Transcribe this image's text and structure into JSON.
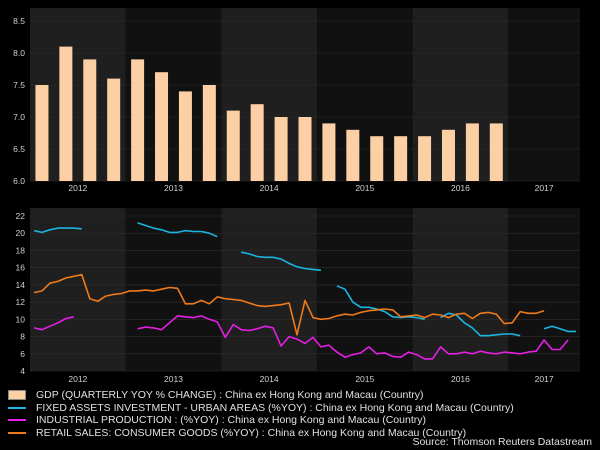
{
  "chart_data": [
    {
      "type": "bar",
      "title": "GDP (QUARTERLY YOY % CHANGE) : China ex Hong Kong and Macau (Country)",
      "series": [
        {
          "name": "GDP (QUARTERLY YOY % CHANGE) : China ex Hong Kong and Macau (Country)",
          "color": "#fcd0a4",
          "values": [
            7.5,
            8.1,
            7.9,
            7.6,
            7.9,
            7.7,
            7.4,
            7.5,
            7.1,
            7.2,
            7.0,
            7.0,
            6.9,
            6.8,
            6.7,
            6.7,
            6.7,
            6.8,
            6.9,
            6.9
          ]
        }
      ],
      "ylim": [
        6.0,
        8.5
      ],
      "yticks": [
        "6.0",
        "6.5",
        "7.0",
        "7.5",
        "8.0",
        "8.5"
      ],
      "year_labels": [
        "2012",
        "2013",
        "2014",
        "2015",
        "2016",
        "2017"
      ]
    },
    {
      "type": "line",
      "ylim": [
        4,
        22
      ],
      "yticks": [
        "4",
        "6",
        "8",
        "10",
        "12",
        "14",
        "16",
        "18",
        "20",
        "22"
      ],
      "year_labels": [
        "2012",
        "2013",
        "2014",
        "2015",
        "2016",
        "2017"
      ],
      "x_start": "2012-01",
      "series": [
        {
          "name": "FIXED ASSETS INVESTMENT - URBAN AREAS (%YOY) : China ex Hong Kong and Macau (Country)",
          "color": "#1ab6e3",
          "values": [
            20.3,
            20.1,
            20.4,
            20.6,
            20.6,
            20.6,
            20.5,
            null,
            null,
            null,
            null,
            null,
            null,
            21.2,
            20.9,
            20.6,
            20.4,
            20.1,
            20.1,
            20.3,
            20.2,
            20.2,
            20.0,
            19.6,
            null,
            null,
            17.8,
            17.6,
            17.3,
            17.2,
            17.2,
            17.0,
            16.5,
            16.1,
            15.9,
            15.8,
            15.7,
            null,
            13.9,
            13.5,
            12.0,
            11.4,
            11.4,
            11.2,
            10.9,
            10.3,
            10.2,
            10.3,
            10.2,
            10.0,
            null,
            10.2,
            10.7,
            10.5,
            9.6,
            9.0,
            8.1,
            8.1,
            8.2,
            8.3,
            8.3,
            8.1,
            null,
            null,
            8.9,
            9.2,
            8.9,
            8.6,
            8.6
          ]
        },
        {
          "name": "INDUSTRIAL PRODUCTION : (%YOY) : China ex Hong Kong and Macau (Country)",
          "color": "#e61ee6",
          "values": [
            9.0,
            8.8,
            9.2,
            9.6,
            10.1,
            10.3,
            null,
            null,
            null,
            null,
            null,
            null,
            null,
            8.9,
            9.1,
            9.0,
            8.8,
            9.6,
            10.4,
            10.3,
            10.2,
            10.4,
            10.0,
            9.7,
            7.9,
            9.4,
            8.8,
            8.7,
            8.9,
            9.2,
            9.0,
            6.9,
            8.0,
            7.7,
            7.2,
            7.9,
            6.8,
            7.0,
            6.2,
            5.6,
            5.9,
            6.1,
            6.8,
            6.0,
            6.1,
            5.7,
            5.6,
            6.2,
            5.9,
            5.4,
            5.4,
            6.8,
            6.0,
            6.0,
            6.2,
            6.0,
            6.3,
            6.1,
            6.0,
            6.2,
            6.1,
            6.0,
            6.2,
            6.3,
            7.6,
            6.5,
            6.5,
            7.6
          ]
        },
        {
          "name": "RETAIL SALES: CONSUMER GOODS (%YOY) : China ex Hong Kong and Macau (Country)",
          "color": "#f07a1a",
          "values": [
            13.1,
            13.3,
            14.2,
            14.4,
            14.8,
            15.0,
            15.2,
            12.4,
            12.1,
            12.7,
            12.9,
            13.0,
            13.3,
            13.3,
            13.4,
            13.3,
            13.5,
            13.7,
            13.6,
            11.8,
            11.8,
            12.2,
            11.8,
            12.6,
            12.4,
            12.3,
            12.2,
            11.9,
            11.6,
            11.5,
            11.6,
            11.7,
            11.9,
            8.2,
            12.2,
            10.2,
            10.0,
            10.1,
            10.4,
            10.6,
            10.5,
            10.8,
            11.0,
            11.1,
            11.2,
            11.1,
            10.3,
            10.4,
            10.5,
            10.2,
            10.6,
            10.5,
            10.2,
            10.6,
            10.7,
            10.1,
            10.7,
            10.8,
            10.6,
            9.5,
            9.6,
            10.9,
            10.7,
            10.7,
            11.0
          ]
        }
      ]
    }
  ],
  "source": "Source: Thomson Reuters Datastream"
}
